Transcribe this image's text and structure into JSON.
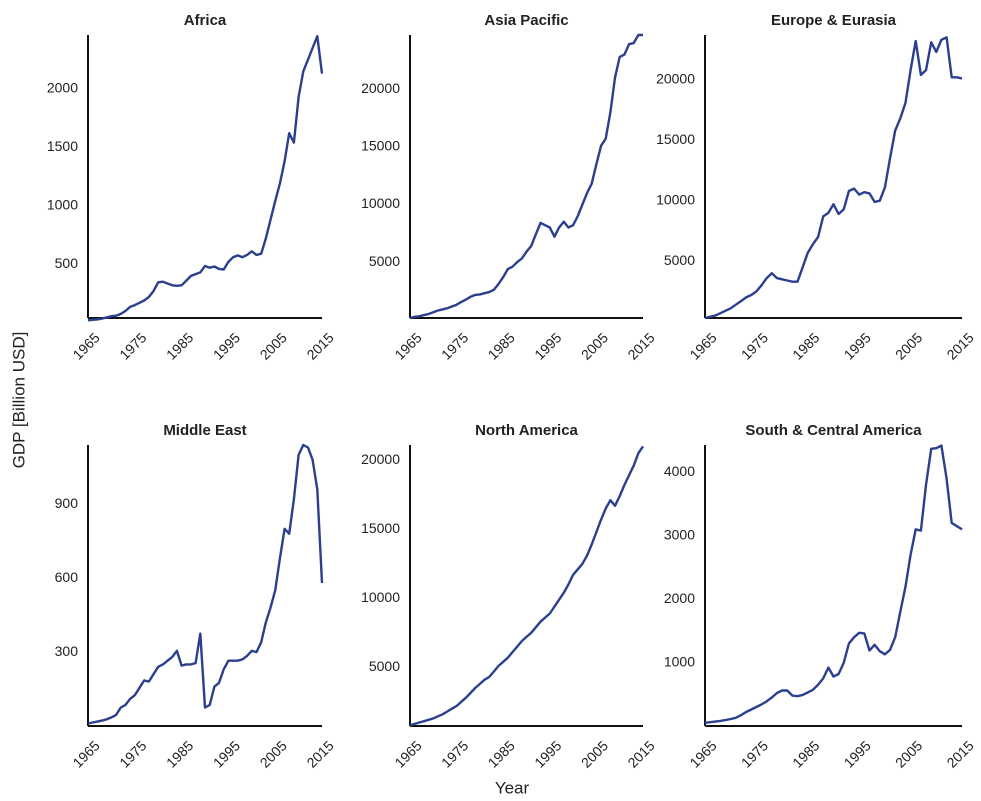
{
  "ylabel": "GDP [Billion USD]",
  "xlabel": "Year",
  "chart_data": [
    {
      "type": "line",
      "title": "Africa",
      "color": "#2b3f8f",
      "grid": false,
      "x": [
        1965,
        1966,
        1967,
        1968,
        1969,
        1970,
        1971,
        1972,
        1973,
        1974,
        1975,
        1976,
        1977,
        1978,
        1979,
        1980,
        1981,
        1982,
        1983,
        1984,
        1985,
        1986,
        1987,
        1988,
        1989,
        1990,
        1991,
        1992,
        1993,
        1994,
        1995,
        1996,
        1997,
        1998,
        1999,
        2000,
        2001,
        2002,
        2003,
        2004,
        2005,
        2006,
        2007,
        2008,
        2009,
        2010,
        2011,
        2012,
        2013,
        2014,
        2015
      ],
      "values": [
        20,
        25,
        28,
        35,
        45,
        55,
        60,
        75,
        100,
        135,
        150,
        170,
        190,
        220,
        270,
        345,
        350,
        335,
        320,
        315,
        320,
        360,
        400,
        415,
        430,
        485,
        470,
        480,
        460,
        455,
        520,
        560,
        575,
        560,
        580,
        610,
        580,
        590,
        720,
        880,
        1040,
        1190,
        1380,
        1620,
        1540,
        1930,
        2150,
        2250,
        2350,
        2450,
        2130
      ],
      "xlim": [
        1965,
        2015
      ],
      "xticks": [
        1965,
        1975,
        1985,
        1995,
        2005,
        2015
      ],
      "ylim": [
        40,
        2460
      ],
      "yticks": [
        500,
        1000,
        1500,
        2000
      ]
    },
    {
      "type": "line",
      "title": "Asia Pacific",
      "color": "#2b3f8f",
      "grid": false,
      "x": [
        1965,
        1966,
        1967,
        1968,
        1969,
        1970,
        1971,
        1972,
        1973,
        1974,
        1975,
        1976,
        1977,
        1978,
        1979,
        1980,
        1981,
        1982,
        1983,
        1984,
        1985,
        1986,
        1987,
        1988,
        1989,
        1990,
        1991,
        1992,
        1993,
        1994,
        1995,
        1996,
        1997,
        1998,
        1999,
        2000,
        2001,
        2002,
        2003,
        2004,
        2005,
        2006,
        2007,
        2008,
        2009,
        2010,
        2011,
        2012,
        2013,
        2014,
        2015
      ],
      "values": [
        150,
        250,
        300,
        400,
        500,
        650,
        800,
        900,
        1000,
        1150,
        1300,
        1550,
        1750,
        2000,
        2150,
        2200,
        2300,
        2400,
        2600,
        3100,
        3700,
        4400,
        4600,
        5000,
        5300,
        5900,
        6400,
        7400,
        8400,
        8200,
        8000,
        7200,
        8000,
        8500,
        8000,
        8200,
        9000,
        10000,
        11000,
        11800,
        13500,
        15100,
        15700,
        18000,
        21000,
        22800,
        23000,
        23900,
        24000,
        24700,
        24700
      ],
      "xlim": [
        1965,
        2015
      ],
      "xticks": [
        1965,
        1975,
        1985,
        1995,
        2005,
        2015
      ],
      "ylim": [
        150,
        24700
      ],
      "yticks": [
        5000,
        10000,
        15000,
        20000
      ]
    },
    {
      "type": "line",
      "title": "Europe & Eurasia",
      "color": "#2b3f8f",
      "grid": false,
      "x": [
        1965,
        1966,
        1967,
        1968,
        1969,
        1970,
        1971,
        1972,
        1973,
        1974,
        1975,
        1976,
        1977,
        1978,
        1979,
        1980,
        1981,
        1982,
        1983,
        1984,
        1985,
        1986,
        1987,
        1988,
        1989,
        1990,
        1991,
        1992,
        1993,
        1994,
        1995,
        1996,
        1997,
        1998,
        1999,
        2000,
        2001,
        2002,
        2003,
        2004,
        2005,
        2006,
        2007,
        2008,
        2009,
        2010,
        2011,
        2012,
        2013,
        2014,
        2015
      ],
      "values": [
        300,
        400,
        500,
        700,
        900,
        1100,
        1400,
        1700,
        2000,
        2200,
        2500,
        3000,
        3600,
        4000,
        3600,
        3500,
        3400,
        3300,
        3300,
        4500,
        5700,
        6400,
        7000,
        8700,
        9000,
        9700,
        8900,
        9300,
        10800,
        11000,
        10500,
        10700,
        10600,
        9900,
        10000,
        11100,
        13500,
        15800,
        16800,
        18100,
        20800,
        23200,
        20400,
        20800,
        23100,
        22300,
        23300,
        23500,
        20200,
        20200,
        20100
      ],
      "xlim": [
        1965,
        2015
      ],
      "xticks": [
        1965,
        1975,
        1985,
        1995,
        2005,
        2015
      ],
      "ylim": [
        300,
        23700
      ],
      "yticks": [
        5000,
        10000,
        15000,
        20000
      ]
    },
    {
      "type": "line",
      "title": "Middle East",
      "color": "#2b3f8f",
      "grid": false,
      "x": [
        1965,
        1966,
        1967,
        1968,
        1969,
        1970,
        1971,
        1972,
        1973,
        1974,
        1975,
        1976,
        1977,
        1978,
        1979,
        1980,
        1981,
        1982,
        1983,
        1984,
        1985,
        1986,
        1987,
        1988,
        1989,
        1990,
        1991,
        1992,
        1993,
        1994,
        1995,
        1996,
        1997,
        1998,
        1999,
        2000,
        2001,
        2002,
        2003,
        2004,
        2005,
        2006,
        2007,
        2008,
        2009,
        2010,
        2011,
        2012,
        2013,
        2014,
        2015
      ],
      "values": [
        10,
        14,
        18,
        22,
        27,
        35,
        45,
        75,
        85,
        110,
        125,
        155,
        185,
        180,
        210,
        240,
        250,
        265,
        280,
        305,
        245,
        250,
        250,
        255,
        375,
        75,
        85,
        160,
        175,
        230,
        265,
        265,
        265,
        270,
        285,
        305,
        300,
        340,
        420,
        480,
        550,
        680,
        800,
        780,
        920,
        1100,
        1140,
        1130,
        1080,
        960,
        580
      ],
      "xlim": [
        1965,
        2015
      ],
      "xticks": [
        1965,
        1975,
        1985,
        1995,
        2005,
        2015
      ],
      "ylim": [
        0,
        1140
      ],
      "yticks": [
        300,
        600,
        900
      ]
    },
    {
      "type": "line",
      "title": "North America",
      "color": "#2b3f8f",
      "grid": false,
      "x": [
        1965,
        1966,
        1967,
        1968,
        1969,
        1970,
        1971,
        1972,
        1973,
        1974,
        1975,
        1976,
        1977,
        1978,
        1979,
        1980,
        1981,
        1982,
        1983,
        1984,
        1985,
        1986,
        1987,
        1988,
        1989,
        1990,
        1991,
        1992,
        1993,
        1994,
        1995,
        1996,
        1997,
        1998,
        1999,
        2000,
        2001,
        2002,
        2003,
        2004,
        2005,
        2006,
        2007,
        2008,
        2009,
        2010,
        2011,
        2012,
        2013,
        2014,
        2015
      ],
      "values": [
        800,
        900,
        1000,
        1100,
        1200,
        1300,
        1450,
        1600,
        1800,
        2000,
        2200,
        2500,
        2800,
        3150,
        3500,
        3800,
        4100,
        4300,
        4700,
        5100,
        5400,
        5700,
        6100,
        6500,
        6900,
        7200,
        7500,
        7900,
        8300,
        8600,
        8900,
        9400,
        9900,
        10400,
        11000,
        11700,
        12100,
        12500,
        13100,
        13900,
        14800,
        15700,
        16500,
        17100,
        16700,
        17400,
        18200,
        18900,
        19600,
        20500,
        21000
      ],
      "xlim": [
        1965,
        2015
      ],
      "xticks": [
        1965,
        1975,
        1985,
        1995,
        2005,
        2015
      ],
      "ylim": [
        750,
        21100
      ],
      "yticks": [
        5000,
        10000,
        15000,
        20000
      ]
    },
    {
      "type": "line",
      "title": "South & Central America",
      "color": "#2b3f8f",
      "grid": false,
      "x": [
        1965,
        1966,
        1967,
        1968,
        1969,
        1970,
        1971,
        1972,
        1973,
        1974,
        1975,
        1976,
        1977,
        1978,
        1979,
        1980,
        1981,
        1982,
        1983,
        1984,
        1985,
        1986,
        1987,
        1988,
        1989,
        1990,
        1991,
        1992,
        1993,
        1994,
        1995,
        1996,
        1997,
        1998,
        1999,
        2000,
        2001,
        2002,
        2003,
        2004,
        2005,
        2006,
        2007,
        2008,
        2009,
        2010,
        2011,
        2012,
        2013,
        2014,
        2015
      ],
      "values": [
        50,
        60,
        70,
        80,
        95,
        110,
        130,
        170,
        220,
        260,
        300,
        340,
        390,
        450,
        520,
        560,
        560,
        480,
        470,
        490,
        530,
        570,
        650,
        750,
        920,
        780,
        820,
        1000,
        1300,
        1400,
        1470,
        1460,
        1190,
        1280,
        1180,
        1130,
        1200,
        1400,
        1800,
        2200,
        2700,
        3100,
        3080,
        3800,
        4370,
        4380,
        4420,
        3900,
        3200,
        3150,
        3100
      ],
      "xlim": [
        1965,
        2015
      ],
      "xticks": [
        1965,
        1975,
        1985,
        1995,
        2005,
        2015
      ],
      "ylim": [
        0,
        4430
      ],
      "yticks": [
        1000,
        2000,
        3000,
        4000
      ]
    }
  ]
}
